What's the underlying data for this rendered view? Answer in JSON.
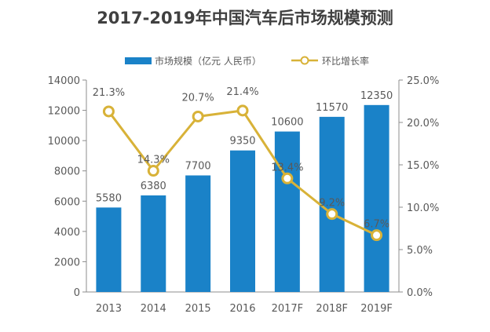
{
  "chart_data": {
    "type": "bar",
    "title": "2017-2019年中国汽车后市场规模预测",
    "categories": [
      "2013",
      "2014",
      "2015",
      "2016",
      "2017F",
      "2018F",
      "2019F"
    ],
    "series": [
      {
        "name": "市场规模（亿元 人民币）",
        "type": "bar",
        "axis": "left",
        "values": [
          5580,
          6380,
          7700,
          9350,
          10600,
          11570,
          12350
        ],
        "labels": [
          "5580",
          "6380",
          "7700",
          "9350",
          "10600",
          "11570",
          "12350"
        ]
      },
      {
        "name": "环比增长率",
        "type": "line",
        "axis": "right",
        "values": [
          21.3,
          14.3,
          20.7,
          21.4,
          13.4,
          9.2,
          6.7
        ],
        "labels": [
          "21.3%",
          "14.3%",
          "20.7%",
          "21.4%",
          "13.4%",
          "9.2%",
          "6.7%"
        ]
      }
    ],
    "y_left": {
      "range": [
        0,
        14000
      ],
      "ticks": [
        "0",
        "2000",
        "4000",
        "6000",
        "8000",
        "10000",
        "12000",
        "14000"
      ],
      "tick_values": [
        0,
        2000,
        4000,
        6000,
        8000,
        10000,
        12000,
        14000
      ]
    },
    "y_right": {
      "range": [
        0,
        25
      ],
      "ticks": [
        "0.0%",
        "5.0%",
        "10.0%",
        "15.0%",
        "20.0%",
        "25.0%"
      ],
      "tick_values": [
        0,
        5,
        10,
        15,
        20,
        25
      ]
    },
    "grid": false,
    "legend_position": "top-center",
    "colors": {
      "bar": "#1A82C8",
      "line": "#D8B238",
      "marker_fill": "#FFFFFF",
      "text": "#595959",
      "title": "#404040",
      "axis": "#8C8C8C"
    }
  }
}
